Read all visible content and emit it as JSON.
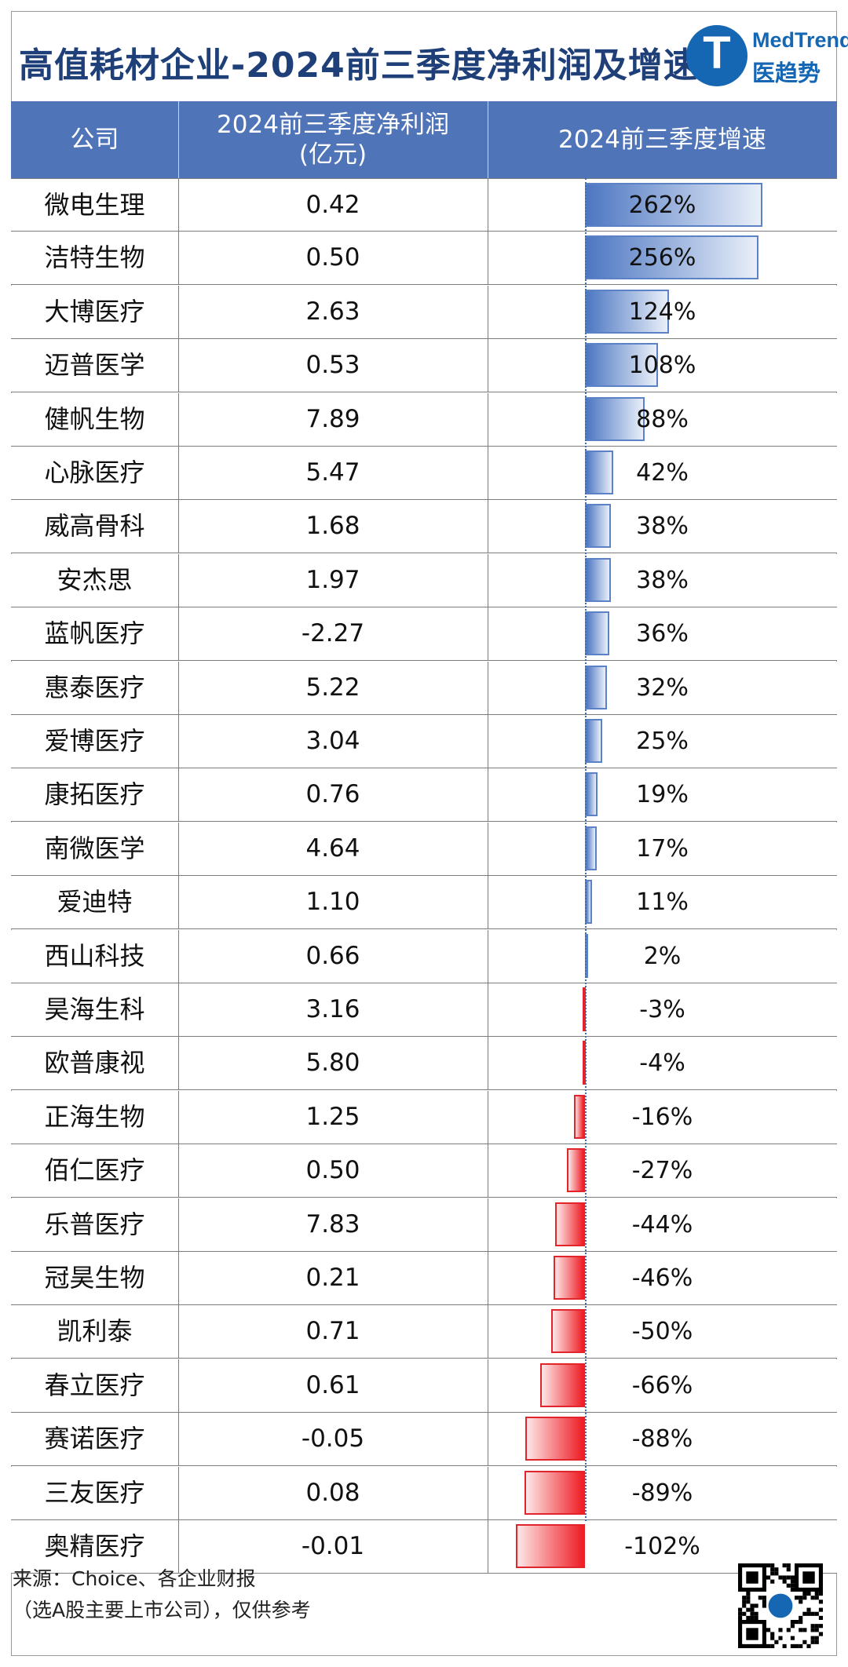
{
  "header": {
    "title": "高值耗材企业-2024前三季度净利润及增速",
    "logo_en": "MedTrend",
    "logo_cn": "医趋势",
    "logo_letter": "T"
  },
  "table": {
    "col_company": "公司",
    "col_profit_line1": "2024前三季度净利润",
    "col_profit_line2": "(亿元)",
    "col_growth": "2024前三季度增速"
  },
  "chart_data": {
    "type": "table",
    "columns": [
      "公司",
      "2024前三季度净利润(亿元)",
      "2024前三季度增速"
    ],
    "rows": [
      {
        "company": "微电生理",
        "profit": "0.42",
        "growth_label": "262%",
        "growth": 262
      },
      {
        "company": "洁特生物",
        "profit": "0.50",
        "growth_label": "256%",
        "growth": 256
      },
      {
        "company": "大博医疗",
        "profit": "2.63",
        "growth_label": "124%",
        "growth": 124
      },
      {
        "company": "迈普医学",
        "profit": "0.53",
        "growth_label": "108%",
        "growth": 108
      },
      {
        "company": "健帆生物",
        "profit": "7.89",
        "growth_label": "88%",
        "growth": 88
      },
      {
        "company": "心脉医疗",
        "profit": "5.47",
        "growth_label": "42%",
        "growth": 42
      },
      {
        "company": "威高骨科",
        "profit": "1.68",
        "growth_label": "38%",
        "growth": 38
      },
      {
        "company": "安杰思",
        "profit": "1.97",
        "growth_label": "38%",
        "growth": 38
      },
      {
        "company": "蓝帆医疗",
        "profit": "-2.27",
        "growth_label": "36%",
        "growth": 36
      },
      {
        "company": "惠泰医疗",
        "profit": "5.22",
        "growth_label": "32%",
        "growth": 32
      },
      {
        "company": "爱博医疗",
        "profit": "3.04",
        "growth_label": "25%",
        "growth": 25
      },
      {
        "company": "康拓医疗",
        "profit": "0.76",
        "growth_label": "19%",
        "growth": 19
      },
      {
        "company": "南微医学",
        "profit": "4.64",
        "growth_label": "17%",
        "growth": 17
      },
      {
        "company": "爱迪特",
        "profit": "1.10",
        "growth_label": "11%",
        "growth": 11
      },
      {
        "company": "西山科技",
        "profit": "0.66",
        "growth_label": "2%",
        "growth": 2
      },
      {
        "company": "昊海生科",
        "profit": "3.16",
        "growth_label": "-3%",
        "growth": -3
      },
      {
        "company": "欧普康视",
        "profit": "5.80",
        "growth_label": "-4%",
        "growth": -4
      },
      {
        "company": "正海生物",
        "profit": "1.25",
        "growth_label": "-16%",
        "growth": -16
      },
      {
        "company": "佰仁医疗",
        "profit": "0.50",
        "growth_label": "-27%",
        "growth": -27
      },
      {
        "company": "乐普医疗",
        "profit": "7.83",
        "growth_label": "-44%",
        "growth": -44
      },
      {
        "company": "冠昊生物",
        "profit": "0.21",
        "growth_label": "-46%",
        "growth": -46
      },
      {
        "company": "凯利泰",
        "profit": "0.71",
        "growth_label": "-50%",
        "growth": -50
      },
      {
        "company": "春立医疗",
        "profit": "0.61",
        "growth_label": "-66%",
        "growth": -66
      },
      {
        "company": "赛诺医疗",
        "profit": "-0.05",
        "growth_label": "-88%",
        "growth": -88
      },
      {
        "company": "三友医疗",
        "profit": "0.08",
        "growth_label": "-89%",
        "growth": -89
      },
      {
        "company": "奥精医疗",
        "profit": "-0.01",
        "growth_label": "-102%",
        "growth": -102
      }
    ],
    "colors": {
      "header_bg": "#4f74b8",
      "positive_bar": "#4d77c2",
      "negative_bar": "#ee1c24",
      "title": "#1f3f78"
    }
  },
  "footer": {
    "source_line1": "来源：Choice、各企业财报",
    "source_line2": "（选A股主要上市公司），仅供参考"
  }
}
